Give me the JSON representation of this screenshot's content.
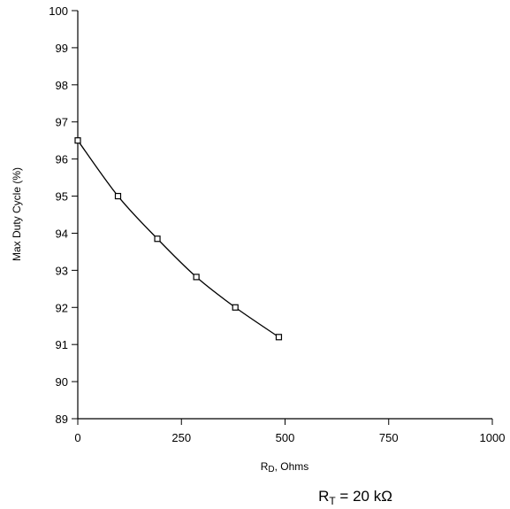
{
  "chart_data": {
    "type": "line",
    "xlabel": {
      "main": "R",
      "sub": "D",
      "rest": ", Ohms"
    },
    "ylabel": "Max Duty Cycle (%)",
    "xlim": [
      0,
      1000
    ],
    "ylim": [
      89,
      100
    ],
    "xticks": [
      0,
      250,
      500,
      750,
      1000
    ],
    "yticks": [
      89,
      90,
      91,
      92,
      93,
      94,
      95,
      96,
      97,
      98,
      99,
      100
    ],
    "grid": false,
    "series": [
      {
        "marker": "square",
        "points": [
          {
            "x": 0,
            "y": 96.5
          },
          {
            "x": 97,
            "y": 95.0
          },
          {
            "x": 192,
            "y": 93.85
          },
          {
            "x": 286,
            "y": 92.82
          },
          {
            "x": 380,
            "y": 92.0
          },
          {
            "x": 485,
            "y": 91.2
          }
        ]
      }
    ],
    "annotation": {
      "main": "R",
      "sub": "T",
      "rest": " = 20 kΩ"
    }
  }
}
